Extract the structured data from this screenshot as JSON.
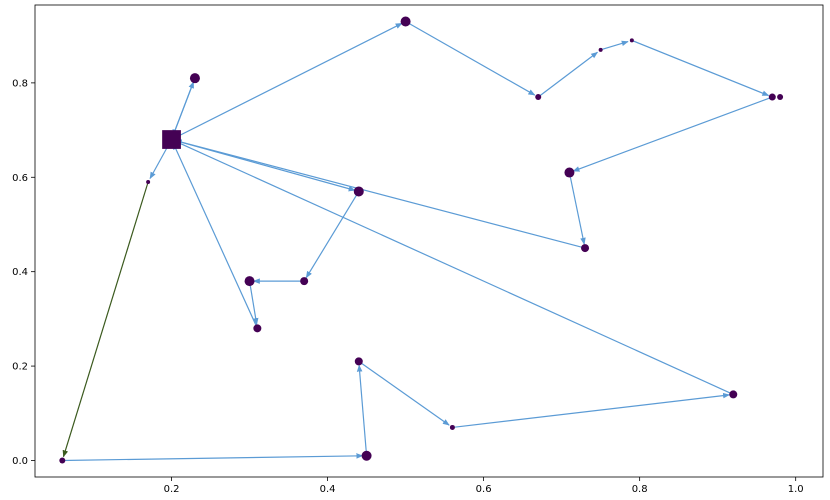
{
  "chart_data": {
    "type": "scatter",
    "title": "",
    "xlabel": "",
    "ylabel": "",
    "xlim": [
      0.025,
      1.035
    ],
    "ylim": [
      -0.035,
      0.965
    ],
    "xticks": [
      0.2,
      0.4,
      0.6,
      0.8,
      1.0
    ],
    "yticks": [
      0.0,
      0.2,
      0.4,
      0.6,
      0.8
    ],
    "xtick_labels": [
      "0.2",
      "0.4",
      "0.6",
      "0.8",
      "1.0"
    ],
    "ytick_labels": [
      "0.0",
      "0.2",
      "0.4",
      "0.6",
      "0.8"
    ],
    "grid": false,
    "legend": "none",
    "colors": {
      "node": "#440154",
      "edge": "#5b9bd5",
      "highlight_edge": "#3b5a1e",
      "axes": "#000000"
    },
    "depot": {
      "x": 0.2,
      "y": 0.68,
      "marker": "square"
    },
    "points": [
      {
        "x": 0.2,
        "y": 0.68,
        "size": 15,
        "marker": "square"
      },
      {
        "x": 0.23,
        "y": 0.81,
        "size": 5
      },
      {
        "x": 0.17,
        "y": 0.59,
        "size": 2
      },
      {
        "x": 0.06,
        "y": 0.0,
        "size": 3
      },
      {
        "x": 0.45,
        "y": 0.01,
        "size": 5
      },
      {
        "x": 0.44,
        "y": 0.21,
        "size": 4
      },
      {
        "x": 0.56,
        "y": 0.07,
        "size": 2.5
      },
      {
        "x": 0.92,
        "y": 0.14,
        "size": 4
      },
      {
        "x": 0.44,
        "y": 0.57,
        "size": 5
      },
      {
        "x": 0.37,
        "y": 0.38,
        "size": 4
      },
      {
        "x": 0.3,
        "y": 0.38,
        "size": 5
      },
      {
        "x": 0.31,
        "y": 0.28,
        "size": 4
      },
      {
        "x": 0.5,
        "y": 0.93,
        "size": 5
      },
      {
        "x": 0.67,
        "y": 0.77,
        "size": 3
      },
      {
        "x": 0.75,
        "y": 0.87,
        "size": 2
      },
      {
        "x": 0.79,
        "y": 0.89,
        "size": 2
      },
      {
        "x": 0.97,
        "y": 0.77,
        "size": 3.5
      },
      {
        "x": 0.98,
        "y": 0.77,
        "size": 3
      },
      {
        "x": 0.71,
        "y": 0.61,
        "size": 5
      },
      {
        "x": 0.73,
        "y": 0.45,
        "size": 4
      }
    ],
    "routes": [
      {
        "color": "edge",
        "path": [
          [
            0.2,
            0.68
          ],
          [
            0.23,
            0.81
          ],
          [
            0.2,
            0.68
          ]
        ]
      },
      {
        "color": "edge",
        "path": [
          [
            0.2,
            0.68
          ],
          [
            0.17,
            0.59
          ]
        ]
      },
      {
        "color": "highlight_edge",
        "path": [
          [
            0.17,
            0.59
          ],
          [
            0.06,
            0.0
          ]
        ]
      },
      {
        "color": "edge",
        "path": [
          [
            0.06,
            0.0
          ],
          [
            0.45,
            0.01
          ],
          [
            0.44,
            0.21
          ],
          [
            0.56,
            0.07
          ],
          [
            0.92,
            0.14
          ],
          [
            0.2,
            0.68
          ]
        ]
      },
      {
        "color": "edge",
        "path": [
          [
            0.2,
            0.68
          ],
          [
            0.44,
            0.57
          ],
          [
            0.37,
            0.38
          ],
          [
            0.3,
            0.38
          ],
          [
            0.31,
            0.28
          ],
          [
            0.2,
            0.68
          ]
        ]
      },
      {
        "color": "edge",
        "path": [
          [
            0.2,
            0.68
          ],
          [
            0.5,
            0.93
          ],
          [
            0.67,
            0.77
          ],
          [
            0.75,
            0.87
          ],
          [
            0.79,
            0.89
          ],
          [
            0.97,
            0.77
          ],
          [
            0.71,
            0.61
          ],
          [
            0.73,
            0.45
          ],
          [
            0.2,
            0.68
          ]
        ]
      }
    ]
  }
}
